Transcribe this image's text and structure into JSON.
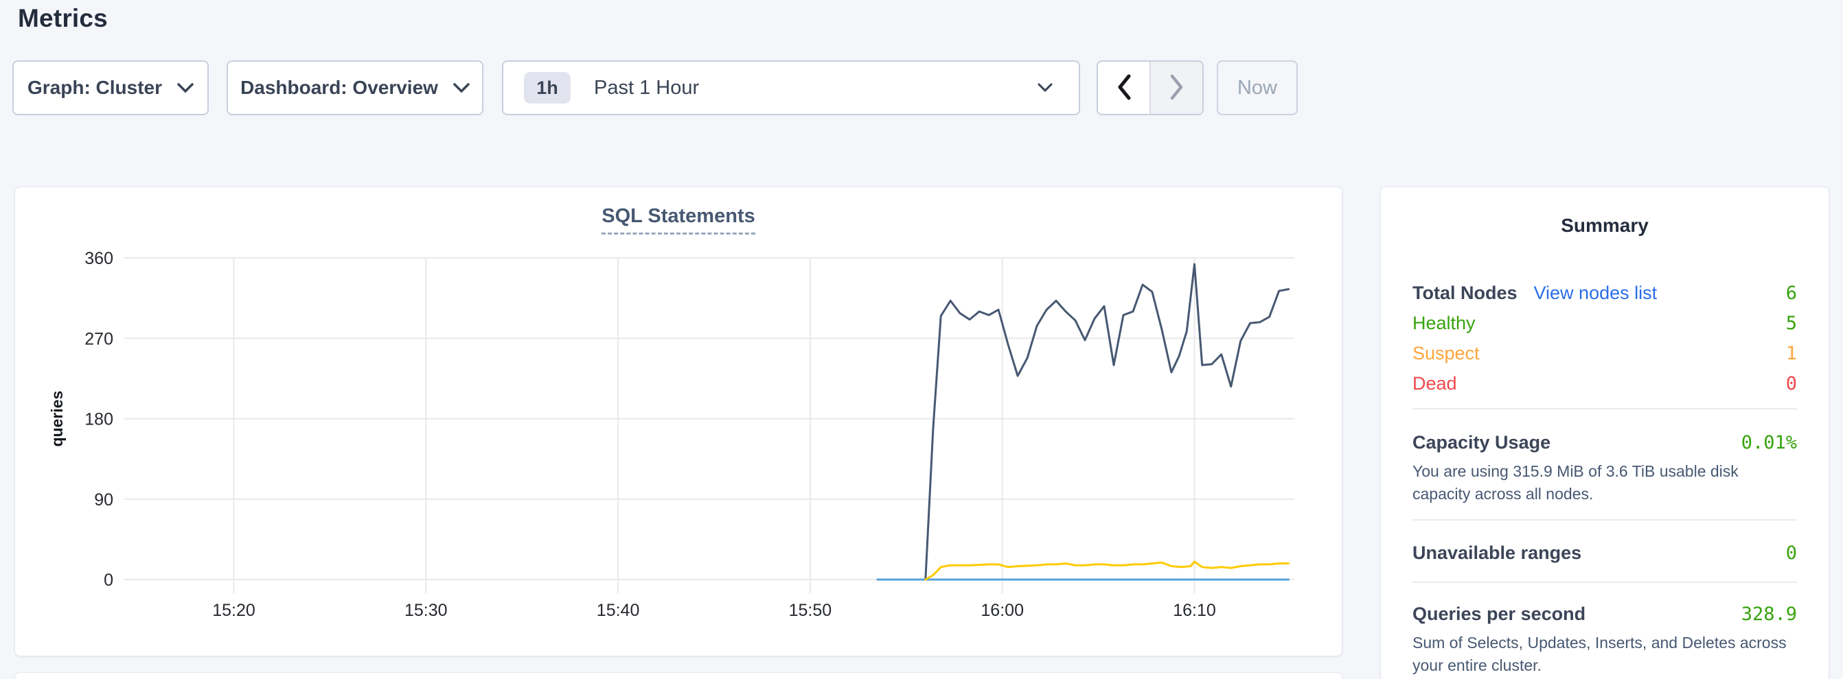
{
  "page": {
    "title": "Metrics",
    "background_color": "#f4f6fa"
  },
  "toolbar": {
    "graph_dropdown_label": "Graph: Cluster",
    "dashboard_dropdown_label": "Dashboard: Overview",
    "time_range": {
      "badge": "1h",
      "label": "Past 1 Hour"
    },
    "now_label": "Now"
  },
  "chart_data": {
    "type": "line",
    "title": "SQL Statements",
    "ylabel": "queries",
    "xlabel": "",
    "grid": true,
    "legend": "none",
    "ylim": [
      0,
      360
    ],
    "y_ticks": [
      0,
      90,
      180,
      270,
      360
    ],
    "x_unit": "minutes-of-day",
    "xlim": [
      914.3,
      975.2
    ],
    "x_ticks": [
      {
        "t": 920,
        "label": "15:20"
      },
      {
        "t": 930,
        "label": "15:30"
      },
      {
        "t": 940,
        "label": "15:40"
      },
      {
        "t": 950,
        "label": "15:50"
      },
      {
        "t": 960,
        "label": "16:00"
      },
      {
        "t": 970,
        "label": "16:10"
      }
    ],
    "series": [
      {
        "color": "#55a2da",
        "points": [
          [
            953.5,
            0
          ],
          [
            974.9,
            0
          ]
        ]
      },
      {
        "color": "#475872",
        "points": [
          [
            956.0,
            0
          ],
          [
            956.4,
            170
          ],
          [
            956.8,
            295
          ],
          [
            957.3,
            312
          ],
          [
            957.8,
            298
          ],
          [
            958.3,
            291
          ],
          [
            958.8,
            300
          ],
          [
            959.3,
            296
          ],
          [
            959.8,
            302
          ],
          [
            960.3,
            263
          ],
          [
            960.8,
            228
          ],
          [
            961.3,
            248
          ],
          [
            961.8,
            284
          ],
          [
            962.3,
            302
          ],
          [
            962.8,
            312
          ],
          [
            963.3,
            300
          ],
          [
            963.8,
            290
          ],
          [
            964.3,
            268
          ],
          [
            964.8,
            292
          ],
          [
            965.3,
            306
          ],
          [
            965.8,
            240
          ],
          [
            966.3,
            296
          ],
          [
            966.8,
            300
          ],
          [
            967.3,
            330
          ],
          [
            967.8,
            322
          ],
          [
            968.3,
            280
          ],
          [
            968.8,
            232
          ],
          [
            969.2,
            250
          ],
          [
            969.6,
            278
          ],
          [
            970.0,
            353
          ],
          [
            970.4,
            240
          ],
          [
            970.9,
            241
          ],
          [
            971.4,
            252
          ],
          [
            971.9,
            216
          ],
          [
            972.4,
            267
          ],
          [
            972.9,
            287
          ],
          [
            973.4,
            288
          ],
          [
            973.9,
            294
          ],
          [
            974.4,
            323
          ],
          [
            974.9,
            325
          ]
        ]
      },
      {
        "color": "#ffcb00",
        "points": [
          [
            956.0,
            0
          ],
          [
            956.4,
            5
          ],
          [
            956.8,
            14
          ],
          [
            957.3,
            16
          ],
          [
            958.3,
            16
          ],
          [
            959.3,
            17
          ],
          [
            959.8,
            17
          ],
          [
            960.3,
            14
          ],
          [
            960.8,
            15
          ],
          [
            961.8,
            16
          ],
          [
            962.3,
            17
          ],
          [
            962.8,
            17
          ],
          [
            963.3,
            18
          ],
          [
            963.8,
            16
          ],
          [
            964.3,
            16
          ],
          [
            964.8,
            17
          ],
          [
            965.3,
            17
          ],
          [
            965.8,
            16
          ],
          [
            966.3,
            16
          ],
          [
            966.8,
            17
          ],
          [
            967.3,
            17
          ],
          [
            967.8,
            18
          ],
          [
            968.3,
            19
          ],
          [
            968.8,
            15
          ],
          [
            969.3,
            14
          ],
          [
            969.8,
            15
          ],
          [
            970.0,
            20
          ],
          [
            970.4,
            14
          ],
          [
            970.9,
            13
          ],
          [
            971.4,
            14
          ],
          [
            971.9,
            13
          ],
          [
            972.4,
            15
          ],
          [
            972.9,
            16
          ],
          [
            973.4,
            17
          ],
          [
            973.9,
            17
          ],
          [
            974.4,
            18
          ],
          [
            974.9,
            18
          ]
        ]
      }
    ]
  },
  "summary": {
    "title": "Summary",
    "node_counts": {
      "total_label": "Total Nodes",
      "link_label": "View nodes list",
      "total_value": "6",
      "healthy_label": "Healthy",
      "healthy_value": "5",
      "suspect_label": "Suspect",
      "suspect_value": "1",
      "dead_label": "Dead",
      "dead_value": "0"
    },
    "capacity": {
      "label": "Capacity Usage",
      "value": "0.01%",
      "description": "You are using 315.9 MiB of 3.6 TiB usable disk capacity across all nodes."
    },
    "unavailable": {
      "label": "Unavailable ranges",
      "value": "0"
    },
    "qps": {
      "label": "Queries per second",
      "value": "328.9",
      "description": "Sum of Selects, Updates, Inserts, and Deletes across your entire cluster."
    },
    "colors": {
      "green": "#37a30d",
      "orange": "#ffa53b",
      "red": "#ef484d",
      "link_blue": "#2b6ee8"
    }
  }
}
